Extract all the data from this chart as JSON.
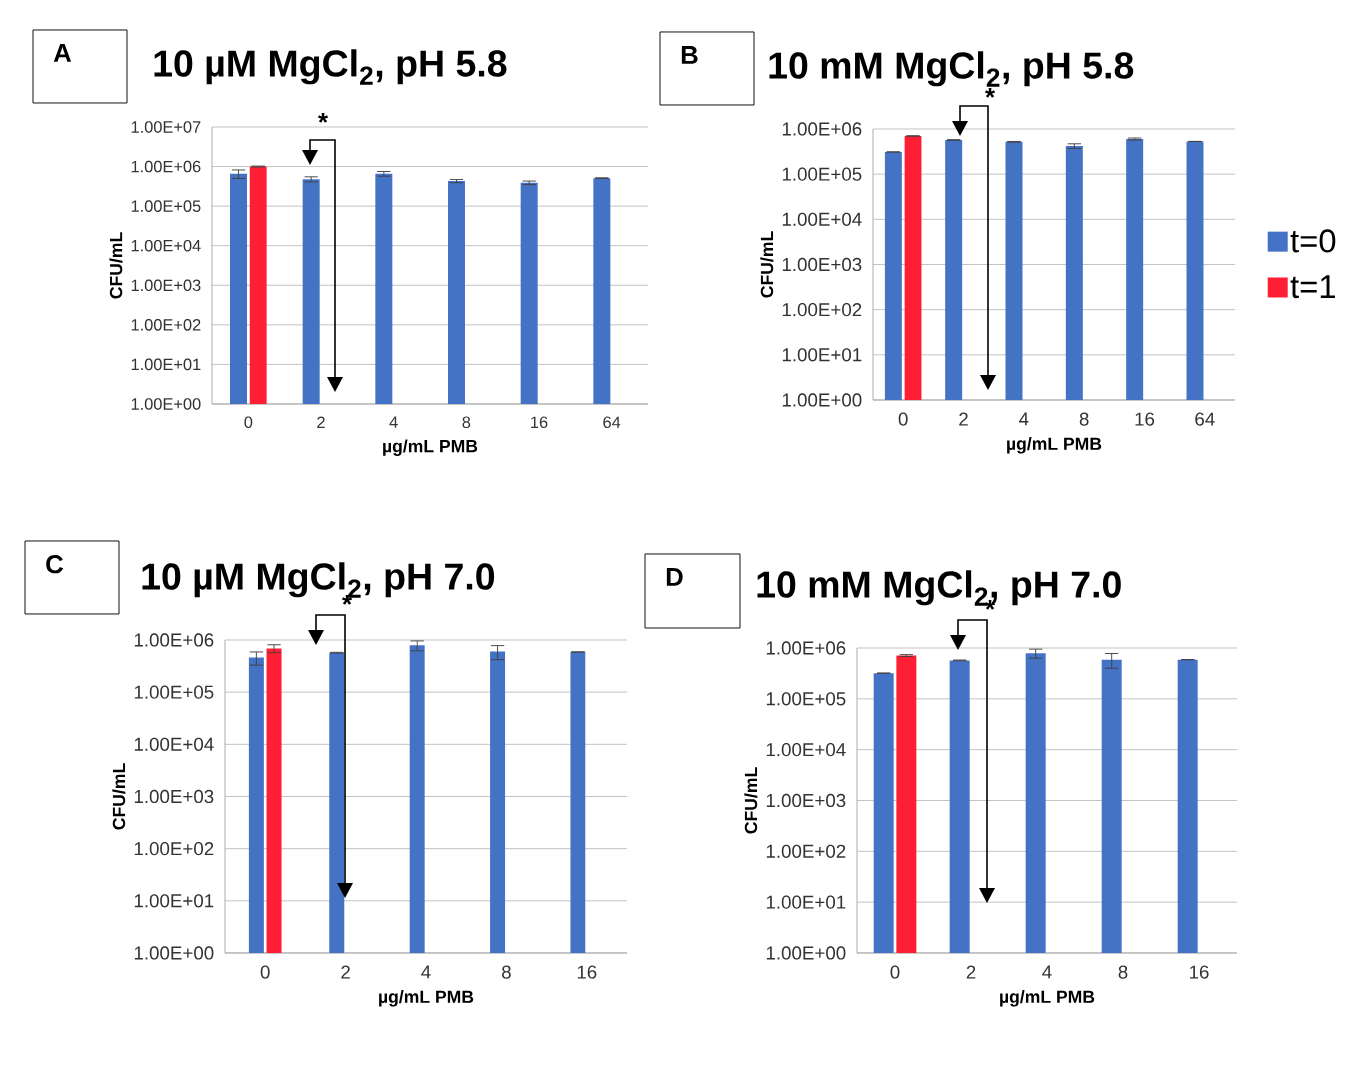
{
  "chart_data": [
    {
      "type": "bar",
      "title": "10 µM MgCl$_{2}$, pH 5.8",
      "xlabel": "µg/mL PMB",
      "ylabel": "CFU/mL",
      "annotations": [
        "A",
        "*"
      ],
      "categories": [
        "0",
        "2",
        "4",
        "8",
        "16",
        "64"
      ],
      "log": "y",
      "grid": "y",
      "ylim": [
        1,
        10000000
      ],
      "yticks": [
        {
          "value": 1,
          "label": "1.00E+00"
        },
        {
          "value": 10,
          "label": "1.00E+01"
        },
        {
          "value": 100,
          "label": "1.00E+02"
        },
        {
          "value": 1000,
          "label": "1.00E+03"
        },
        {
          "value": 10000,
          "label": "1.00E+04"
        },
        {
          "value": 100000,
          "label": "1.00E+05"
        },
        {
          "value": 1000000,
          "label": "1.00E+06"
        },
        {
          "value": 10000000,
          "label": "1.00E+07"
        }
      ],
      "series": [
        {
          "color": "#4472c4",
          "values": [
            660000,
            480000,
            660000,
            430000,
            390000,
            510000
          ],
          "errors": [
            160000,
            70000,
            90000,
            40000,
            40000,
            10000
          ]
        },
        {
          "color": "#ff1f35",
          "values": [
            1000000,
            null,
            null,
            null,
            null,
            null
          ],
          "errors": [
            30000,
            null,
            null,
            null,
            null,
            null
          ]
        }
      ]
    },
    {
      "type": "bar",
      "title": "10 mM MgCl$_{2}$, pH 5.8",
      "xlabel": "µg/mL PMB",
      "ylabel": "CFU/mL",
      "annotations": [
        "B",
        "*"
      ],
      "categories": [
        "0",
        "2",
        "4",
        "8",
        "16",
        "64"
      ],
      "log": "y",
      "grid": "y",
      "legend": "right",
      "ylim": [
        1,
        1000000
      ],
      "yticks": [
        {
          "value": 1,
          "label": "1.00E+00"
        },
        {
          "value": 10,
          "label": "1.00E+01"
        },
        {
          "value": 100,
          "label": "1.00E+02"
        },
        {
          "value": 1000,
          "label": "1.00E+03"
        },
        {
          "value": 10000,
          "label": "1.00E+04"
        },
        {
          "value": 100000,
          "label": "1.00E+05"
        },
        {
          "value": 1000000,
          "label": "1.00E+06"
        }
      ],
      "series": [
        {
          "name": "t=0",
          "color": "#4472c4",
          "values": [
            310000,
            570000,
            520000,
            420000,
            600000,
            530000
          ],
          "errors": [
            null,
            10000,
            10000,
            50000,
            30000,
            null
          ]
        },
        {
          "name": "t=1",
          "color": "#ff1f35",
          "values": [
            700000,
            null,
            null,
            null,
            null,
            null
          ],
          "errors": [
            10000,
            null,
            null,
            null,
            null,
            null
          ]
        }
      ]
    },
    {
      "type": "bar",
      "title": "10 µM MgCl$_{2}$, pH 7.0",
      "xlabel": "µg/mL PMB",
      "ylabel": "CFU/mL",
      "annotations": [
        "C",
        "*"
      ],
      "categories": [
        "0",
        "2",
        "4",
        "8",
        "16"
      ],
      "log": "y",
      "grid": "y",
      "ylim": [
        1,
        1000000
      ],
      "yticks": [
        {
          "value": 1,
          "label": "1.00E+00"
        },
        {
          "value": 10,
          "label": "1.00E+01"
        },
        {
          "value": 100,
          "label": "1.00E+02"
        },
        {
          "value": 1000,
          "label": "1.00E+03"
        },
        {
          "value": 10000,
          "label": "1.00E+04"
        },
        {
          "value": 100000,
          "label": "1.00E+05"
        },
        {
          "value": 1000000,
          "label": "1.00E+06"
        }
      ],
      "series": [
        {
          "color": "#4472c4",
          "values": [
            460000,
            570000,
            790000,
            600000,
            590000
          ],
          "errors": [
            130000,
            10000,
            170000,
            180000,
            null
          ]
        },
        {
          "color": "#ff1f35",
          "values": [
            690000,
            null,
            null,
            null,
            null
          ],
          "errors": [
            120000,
            null,
            null,
            null,
            null
          ]
        }
      ]
    },
    {
      "type": "bar",
      "title": "10 mM MgCl$_{2}$, pH 7.0",
      "xlabel": "µg/mL PMB",
      "ylabel": "CFU/mL",
      "annotations": [
        "D",
        "*"
      ],
      "categories": [
        "0",
        "2",
        "4",
        "8",
        "16"
      ],
      "log": "y",
      "grid": "y",
      "ylim": [
        1,
        1000000
      ],
      "yticks": [
        {
          "value": 1,
          "label": "1.00E+00"
        },
        {
          "value": 10,
          "label": "1.00E+01"
        },
        {
          "value": 100,
          "label": "1.00E+02"
        },
        {
          "value": 1000,
          "label": "1.00E+03"
        },
        {
          "value": 10000,
          "label": "1.00E+04"
        },
        {
          "value": 100000,
          "label": "1.00E+05"
        },
        {
          "value": 1000000,
          "label": "1.00E+06"
        }
      ],
      "series": [
        {
          "color": "#4472c4",
          "values": [
            320000,
            570000,
            790000,
            590000,
            590000
          ],
          "errors": [
            null,
            10000,
            160000,
            190000,
            null
          ]
        },
        {
          "color": "#ff1f35",
          "values": [
            710000,
            null,
            null,
            null,
            null
          ],
          "errors": [
            30000,
            null,
            null,
            null,
            null
          ]
        }
      ]
    }
  ]
}
